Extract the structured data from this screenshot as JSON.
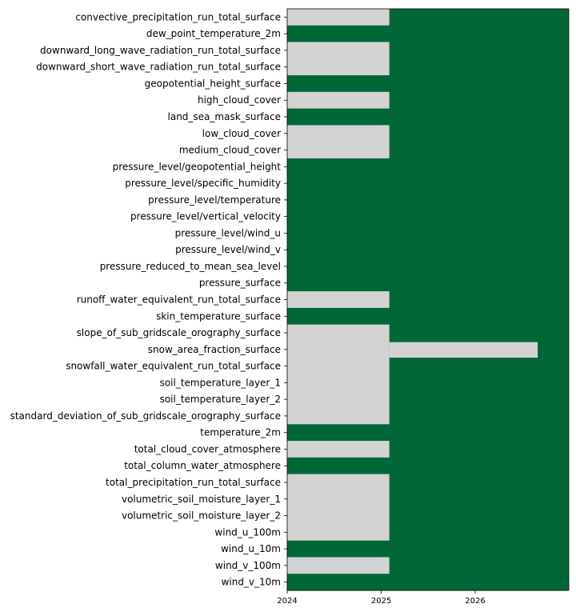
{
  "chart_data": {
    "type": "heatmap",
    "title": "",
    "xlabel": "",
    "ylabel": "",
    "x_ticks": [
      "2024",
      "2025",
      "2026"
    ],
    "xlim": [
      "2024-01-01",
      "2026-12-31"
    ],
    "colors": {
      "available": "#006837",
      "missing": "#d3d3d3",
      "axis": "#000000"
    },
    "rows": [
      {
        "label": "convective_precipitation_run_total_surface",
        "available_from": "2025-02-01"
      },
      {
        "label": "dew_point_temperature_2m",
        "available_from": "2024-01-01"
      },
      {
        "label": "downward_long_wave_radiation_run_total_surface",
        "available_from": "2025-02-01"
      },
      {
        "label": "downward_short_wave_radiation_run_total_surface",
        "available_from": "2025-02-01"
      },
      {
        "label": "geopotential_height_surface",
        "available_from": "2024-01-01"
      },
      {
        "label": "high_cloud_cover",
        "available_from": "2025-02-01"
      },
      {
        "label": "land_sea_mask_surface",
        "available_from": "2024-01-01"
      },
      {
        "label": "low_cloud_cover",
        "available_from": "2025-02-01"
      },
      {
        "label": "medium_cloud_cover",
        "available_from": "2025-02-01"
      },
      {
        "label": "pressure_level/geopotential_height",
        "available_from": "2024-01-01"
      },
      {
        "label": "pressure_level/specific_humidity",
        "available_from": "2024-01-01"
      },
      {
        "label": "pressure_level/temperature",
        "available_from": "2024-01-01"
      },
      {
        "label": "pressure_level/vertical_velocity",
        "available_from": "2024-01-01"
      },
      {
        "label": "pressure_level/wind_u",
        "available_from": "2024-01-01"
      },
      {
        "label": "pressure_level/wind_v",
        "available_from": "2024-01-01"
      },
      {
        "label": "pressure_reduced_to_mean_sea_level",
        "available_from": "2024-01-01"
      },
      {
        "label": "pressure_surface",
        "available_from": "2024-01-01"
      },
      {
        "label": "runoff_water_equivalent_run_total_surface",
        "available_from": "2025-02-01"
      },
      {
        "label": "skin_temperature_surface",
        "available_from": "2024-01-01"
      },
      {
        "label": "slope_of_sub_gridscale_orography_surface",
        "available_from": "2025-02-01"
      },
      {
        "label": "snow_area_fraction_surface",
        "available_from": "2025-02-01",
        "missing_until": "2026-09-01"
      },
      {
        "label": "snowfall_water_equivalent_run_total_surface",
        "available_from": "2025-02-01"
      },
      {
        "label": "soil_temperature_layer_1",
        "available_from": "2025-02-01"
      },
      {
        "label": "soil_temperature_layer_2",
        "available_from": "2025-02-01"
      },
      {
        "label": "standard_deviation_of_sub_gridscale_orography_surface",
        "available_from": "2025-02-01"
      },
      {
        "label": "temperature_2m",
        "available_from": "2024-01-01"
      },
      {
        "label": "total_cloud_cover_atmosphere",
        "available_from": "2025-02-01"
      },
      {
        "label": "total_column_water_atmosphere",
        "available_from": "2024-01-01"
      },
      {
        "label": "total_precipitation_run_total_surface",
        "available_from": "2025-02-01"
      },
      {
        "label": "volumetric_soil_moisture_layer_1",
        "available_from": "2025-02-01"
      },
      {
        "label": "volumetric_soil_moisture_layer_2",
        "available_from": "2025-02-01"
      },
      {
        "label": "wind_u_100m",
        "available_from": "2025-02-01"
      },
      {
        "label": "wind_u_10m",
        "available_from": "2024-01-01"
      },
      {
        "label": "wind_v_100m",
        "available_from": "2025-02-01"
      },
      {
        "label": "wind_v_10m",
        "available_from": "2024-01-01"
      }
    ]
  }
}
